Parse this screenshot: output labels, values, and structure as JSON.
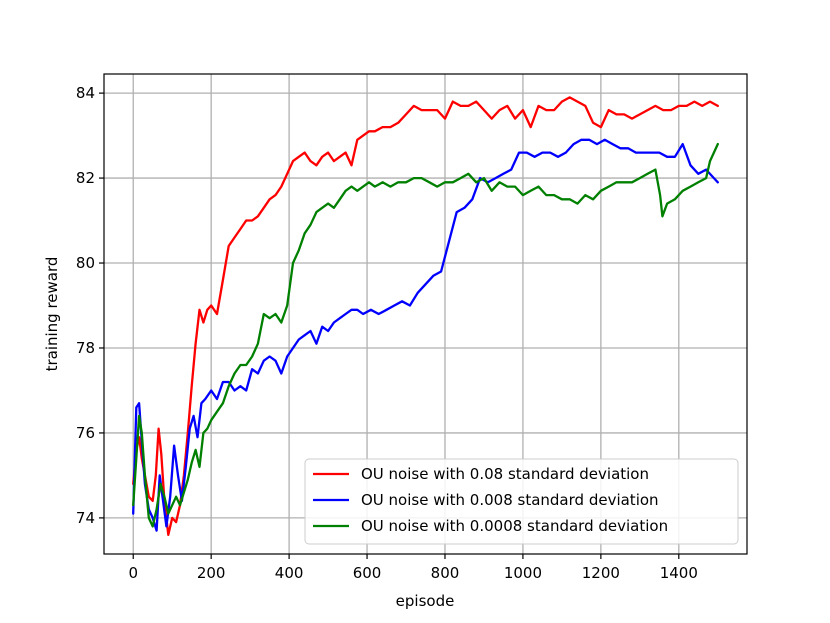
{
  "chart_data": {
    "type": "line",
    "title": "",
    "xlabel": "episode",
    "ylabel": "training reward",
    "xlim": [
      -75,
      1575
    ],
    "ylim": [
      73.15,
      84.45
    ],
    "xticks": [
      0,
      200,
      400,
      600,
      800,
      1000,
      1200,
      1400
    ],
    "yticks": [
      74,
      76,
      78,
      80,
      82,
      84
    ],
    "grid": true,
    "legend_position": "lower-right",
    "series": [
      {
        "name": "OU noise with 0.08 standard deviation",
        "color": "#ff0000",
        "points": [
          [
            0,
            74.8
          ],
          [
            8,
            75.6
          ],
          [
            15,
            75.9
          ],
          [
            22,
            75.4
          ],
          [
            30,
            75.0
          ],
          [
            40,
            74.5
          ],
          [
            50,
            74.4
          ],
          [
            58,
            75.0
          ],
          [
            65,
            76.1
          ],
          [
            72,
            75.5
          ],
          [
            80,
            74.4
          ],
          [
            90,
            73.6
          ],
          [
            100,
            74.0
          ],
          [
            110,
            73.9
          ],
          [
            120,
            74.3
          ],
          [
            130,
            75.0
          ],
          [
            140,
            76.0
          ],
          [
            150,
            77.1
          ],
          [
            160,
            78.1
          ],
          [
            170,
            78.9
          ],
          [
            180,
            78.6
          ],
          [
            190,
            78.9
          ],
          [
            200,
            79.0
          ],
          [
            215,
            78.8
          ],
          [
            230,
            79.6
          ],
          [
            245,
            80.4
          ],
          [
            260,
            80.6
          ],
          [
            275,
            80.8
          ],
          [
            290,
            81.0
          ],
          [
            305,
            81.0
          ],
          [
            320,
            81.1
          ],
          [
            335,
            81.3
          ],
          [
            350,
            81.5
          ],
          [
            365,
            81.6
          ],
          [
            380,
            81.8
          ],
          [
            395,
            82.1
          ],
          [
            410,
            82.4
          ],
          [
            425,
            82.5
          ],
          [
            440,
            82.6
          ],
          [
            455,
            82.4
          ],
          [
            470,
            82.3
          ],
          [
            485,
            82.5
          ],
          [
            500,
            82.6
          ],
          [
            515,
            82.4
          ],
          [
            530,
            82.5
          ],
          [
            545,
            82.6
          ],
          [
            560,
            82.3
          ],
          [
            575,
            82.9
          ],
          [
            590,
            83.0
          ],
          [
            605,
            83.1
          ],
          [
            620,
            83.1
          ],
          [
            640,
            83.2
          ],
          [
            660,
            83.2
          ],
          [
            680,
            83.3
          ],
          [
            700,
            83.5
          ],
          [
            720,
            83.7
          ],
          [
            740,
            83.6
          ],
          [
            760,
            83.6
          ],
          [
            780,
            83.6
          ],
          [
            800,
            83.4
          ],
          [
            820,
            83.8
          ],
          [
            840,
            83.7
          ],
          [
            860,
            83.7
          ],
          [
            880,
            83.8
          ],
          [
            900,
            83.6
          ],
          [
            920,
            83.4
          ],
          [
            940,
            83.6
          ],
          [
            960,
            83.7
          ],
          [
            980,
            83.4
          ],
          [
            1000,
            83.6
          ],
          [
            1020,
            83.2
          ],
          [
            1040,
            83.7
          ],
          [
            1060,
            83.6
          ],
          [
            1080,
            83.6
          ],
          [
            1100,
            83.8
          ],
          [
            1120,
            83.9
          ],
          [
            1140,
            83.8
          ],
          [
            1160,
            83.7
          ],
          [
            1180,
            83.3
          ],
          [
            1200,
            83.2
          ],
          [
            1220,
            83.6
          ],
          [
            1240,
            83.5
          ],
          [
            1260,
            83.5
          ],
          [
            1280,
            83.4
          ],
          [
            1300,
            83.5
          ],
          [
            1320,
            83.6
          ],
          [
            1340,
            83.7
          ],
          [
            1360,
            83.6
          ],
          [
            1380,
            83.6
          ],
          [
            1400,
            83.7
          ],
          [
            1420,
            83.7
          ],
          [
            1440,
            83.8
          ],
          [
            1460,
            83.7
          ],
          [
            1480,
            83.8
          ],
          [
            1500,
            83.7
          ]
        ]
      },
      {
        "name": "OU noise with 0.008 standard deviation",
        "color": "#0000ff",
        "points": [
          [
            0,
            74.1
          ],
          [
            8,
            76.6
          ],
          [
            15,
            76.7
          ],
          [
            22,
            75.8
          ],
          [
            30,
            74.8
          ],
          [
            40,
            74.2
          ],
          [
            50,
            74.0
          ],
          [
            60,
            73.7
          ],
          [
            68,
            75.0
          ],
          [
            75,
            74.5
          ],
          [
            85,
            73.8
          ],
          [
            95,
            74.5
          ],
          [
            105,
            75.7
          ],
          [
            115,
            75.0
          ],
          [
            125,
            74.4
          ],
          [
            135,
            75.2
          ],
          [
            145,
            76.1
          ],
          [
            155,
            76.4
          ],
          [
            165,
            75.9
          ],
          [
            175,
            76.7
          ],
          [
            185,
            76.8
          ],
          [
            200,
            77.0
          ],
          [
            215,
            76.8
          ],
          [
            230,
            77.2
          ],
          [
            245,
            77.2
          ],
          [
            260,
            77.0
          ],
          [
            275,
            77.1
          ],
          [
            290,
            77.0
          ],
          [
            305,
            77.5
          ],
          [
            320,
            77.4
          ],
          [
            335,
            77.7
          ],
          [
            350,
            77.8
          ],
          [
            365,
            77.7
          ],
          [
            380,
            77.4
          ],
          [
            395,
            77.8
          ],
          [
            410,
            78.0
          ],
          [
            425,
            78.2
          ],
          [
            440,
            78.3
          ],
          [
            455,
            78.4
          ],
          [
            470,
            78.1
          ],
          [
            485,
            78.5
          ],
          [
            500,
            78.4
          ],
          [
            515,
            78.6
          ],
          [
            530,
            78.7
          ],
          [
            545,
            78.8
          ],
          [
            560,
            78.9
          ],
          [
            575,
            78.9
          ],
          [
            590,
            78.8
          ],
          [
            610,
            78.9
          ],
          [
            630,
            78.8
          ],
          [
            650,
            78.9
          ],
          [
            670,
            79.0
          ],
          [
            690,
            79.1
          ],
          [
            710,
            79.0
          ],
          [
            730,
            79.3
          ],
          [
            750,
            79.5
          ],
          [
            770,
            79.7
          ],
          [
            790,
            79.8
          ],
          [
            810,
            80.5
          ],
          [
            830,
            81.2
          ],
          [
            850,
            81.3
          ],
          [
            870,
            81.5
          ],
          [
            890,
            82.0
          ],
          [
            910,
            81.9
          ],
          [
            930,
            82.0
          ],
          [
            950,
            82.1
          ],
          [
            970,
            82.2
          ],
          [
            990,
            82.6
          ],
          [
            1010,
            82.6
          ],
          [
            1030,
            82.5
          ],
          [
            1050,
            82.6
          ],
          [
            1070,
            82.6
          ],
          [
            1090,
            82.5
          ],
          [
            1110,
            82.6
          ],
          [
            1130,
            82.8
          ],
          [
            1150,
            82.9
          ],
          [
            1170,
            82.9
          ],
          [
            1190,
            82.8
          ],
          [
            1210,
            82.9
          ],
          [
            1230,
            82.8
          ],
          [
            1250,
            82.7
          ],
          [
            1270,
            82.7
          ],
          [
            1290,
            82.6
          ],
          [
            1310,
            82.6
          ],
          [
            1330,
            82.6
          ],
          [
            1350,
            82.6
          ],
          [
            1370,
            82.5
          ],
          [
            1390,
            82.5
          ],
          [
            1410,
            82.8
          ],
          [
            1430,
            82.3
          ],
          [
            1450,
            82.1
          ],
          [
            1470,
            82.2
          ],
          [
            1490,
            82.0
          ],
          [
            1500,
            81.9
          ]
        ]
      },
      {
        "name": "OU noise with 0.0008 standard deviation",
        "color": "#008000",
        "points": [
          [
            0,
            74.3
          ],
          [
            8,
            75.4
          ],
          [
            15,
            76.4
          ],
          [
            22,
            76.0
          ],
          [
            30,
            75.0
          ],
          [
            40,
            74.0
          ],
          [
            50,
            73.8
          ],
          [
            60,
            74.2
          ],
          [
            70,
            74.8
          ],
          [
            80,
            74.5
          ],
          [
            90,
            74.1
          ],
          [
            100,
            74.3
          ],
          [
            110,
            74.5
          ],
          [
            120,
            74.3
          ],
          [
            130,
            74.6
          ],
          [
            140,
            74.9
          ],
          [
            150,
            75.3
          ],
          [
            160,
            75.6
          ],
          [
            170,
            75.2
          ],
          [
            180,
            76.0
          ],
          [
            190,
            76.1
          ],
          [
            200,
            76.3
          ],
          [
            215,
            76.5
          ],
          [
            230,
            76.7
          ],
          [
            245,
            77.1
          ],
          [
            260,
            77.4
          ],
          [
            275,
            77.6
          ],
          [
            290,
            77.6
          ],
          [
            305,
            77.8
          ],
          [
            320,
            78.1
          ],
          [
            335,
            78.8
          ],
          [
            350,
            78.7
          ],
          [
            365,
            78.8
          ],
          [
            380,
            78.6
          ],
          [
            395,
            79.0
          ],
          [
            410,
            80.0
          ],
          [
            425,
            80.3
          ],
          [
            440,
            80.7
          ],
          [
            455,
            80.9
          ],
          [
            470,
            81.2
          ],
          [
            485,
            81.3
          ],
          [
            500,
            81.4
          ],
          [
            515,
            81.3
          ],
          [
            530,
            81.5
          ],
          [
            545,
            81.7
          ],
          [
            560,
            81.8
          ],
          [
            575,
            81.7
          ],
          [
            590,
            81.8
          ],
          [
            605,
            81.9
          ],
          [
            620,
            81.8
          ],
          [
            640,
            81.9
          ],
          [
            660,
            81.8
          ],
          [
            680,
            81.9
          ],
          [
            700,
            81.9
          ],
          [
            720,
            82.0
          ],
          [
            740,
            82.0
          ],
          [
            760,
            81.9
          ],
          [
            780,
            81.8
          ],
          [
            800,
            81.9
          ],
          [
            820,
            81.9
          ],
          [
            840,
            82.0
          ],
          [
            860,
            82.1
          ],
          [
            880,
            81.9
          ],
          [
            900,
            82.0
          ],
          [
            920,
            81.7
          ],
          [
            940,
            81.9
          ],
          [
            960,
            81.8
          ],
          [
            980,
            81.8
          ],
          [
            1000,
            81.6
          ],
          [
            1020,
            81.7
          ],
          [
            1040,
            81.8
          ],
          [
            1060,
            81.6
          ],
          [
            1080,
            81.6
          ],
          [
            1100,
            81.5
          ],
          [
            1120,
            81.5
          ],
          [
            1140,
            81.4
          ],
          [
            1160,
            81.6
          ],
          [
            1180,
            81.5
          ],
          [
            1200,
            81.7
          ],
          [
            1220,
            81.8
          ],
          [
            1240,
            81.9
          ],
          [
            1260,
            81.9
          ],
          [
            1280,
            81.9
          ],
          [
            1300,
            82.0
          ],
          [
            1320,
            82.1
          ],
          [
            1340,
            82.2
          ],
          [
            1352,
            81.6
          ],
          [
            1358,
            81.1
          ],
          [
            1370,
            81.4
          ],
          [
            1390,
            81.5
          ],
          [
            1410,
            81.7
          ],
          [
            1430,
            81.8
          ],
          [
            1450,
            81.9
          ],
          [
            1470,
            82.0
          ],
          [
            1480,
            82.4
          ],
          [
            1490,
            82.6
          ],
          [
            1500,
            82.8
          ]
        ]
      }
    ]
  }
}
